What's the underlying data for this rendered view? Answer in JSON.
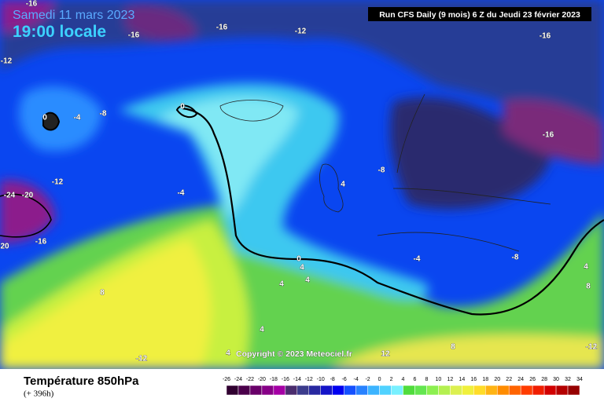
{
  "header": {
    "date": "Samedi 11 mars 2023",
    "time": "19:00 locale",
    "run": "Run CFS Daily (9 mois) 6 Z du Jeudi 23 février 2023"
  },
  "copyright": "Copyright © 2023 Meteociel.fr",
  "footer": {
    "title": "Température 850hPa",
    "subtitle": "(+ 396h)"
  },
  "contour_labels": [
    -16,
    -16,
    -16,
    -12,
    -16,
    -12,
    0,
    -4,
    -8,
    0,
    -16,
    -8,
    4,
    -12,
    -24,
    -20,
    -4,
    -16,
    20,
    0,
    4,
    -4,
    -8,
    4,
    8,
    4,
    4,
    8,
    4,
    4,
    12,
    8,
    -12,
    -12
  ],
  "legend": {
    "ticks": [
      -26,
      -24,
      -22,
      -20,
      -18,
      -16,
      -14,
      -12,
      -10,
      -8,
      -6,
      -4,
      -2,
      0,
      2,
      4,
      6,
      8,
      10,
      12,
      14,
      16,
      18,
      20,
      22,
      24,
      26,
      28,
      30,
      32,
      34
    ],
    "colors": [
      "#300030",
      "#4b004b",
      "#690069",
      "#870087",
      "#a500a5",
      "#4b2d6e",
      "#3c3c8c",
      "#2828a0",
      "#1414c8",
      "#0000f0",
      "#1450ff",
      "#2882ff",
      "#3cb4ff",
      "#50d2ff",
      "#78f0ff",
      "#50dc3c",
      "#64e650",
      "#8cf050",
      "#b4f050",
      "#dcf050",
      "#f0f03c",
      "#ffdc28",
      "#ffb414",
      "#ff8c00",
      "#ff6400",
      "#ff3c00",
      "#f01e00",
      "#d20000",
      "#b40000",
      "#960000"
    ]
  }
}
